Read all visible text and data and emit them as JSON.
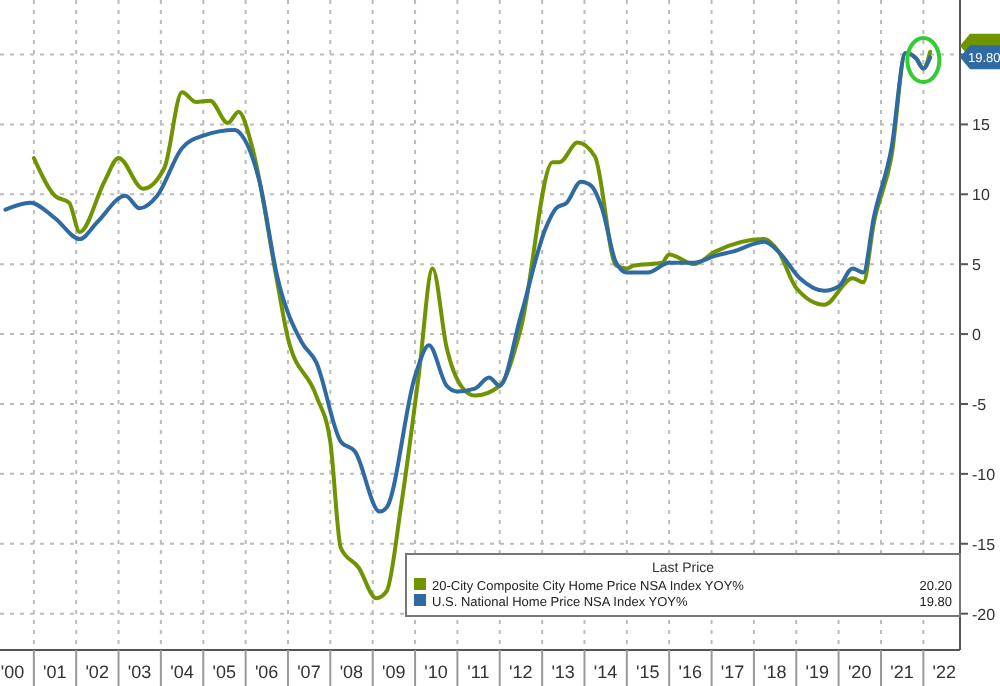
{
  "chart_data": {
    "type": "line",
    "legend_title": "Last Price",
    "legend": "bottom right",
    "grid": true,
    "marker": "none",
    "line_style": "solid",
    "xlim": [
      "2000-03-15",
      "2022-11-13"
    ],
    "ylim": [
      -22.6,
      23.9
    ],
    "xticks": [
      {
        "value": "2001",
        "label": null
      },
      {
        "value": "2002",
        "label": null
      },
      {
        "value": "2003",
        "label": null
      },
      {
        "value": "2004",
        "label": null
      },
      {
        "value": "2005",
        "label": null
      },
      {
        "value": "2006",
        "label": null
      },
      {
        "value": "2007",
        "label": null
      },
      {
        "value": "2008",
        "label": null
      },
      {
        "value": "2009",
        "label": null
      },
      {
        "value": "2010",
        "label": null
      },
      {
        "value": "2011",
        "label": null
      },
      {
        "value": "2012",
        "label": null
      },
      {
        "value": "2013",
        "label": null
      },
      {
        "value": "2014",
        "label": null
      },
      {
        "value": "2015",
        "label": null
      },
      {
        "value": "2016",
        "label": null
      },
      {
        "value": "2017",
        "label": null
      },
      {
        "value": "2018",
        "label": null
      },
      {
        "value": "2019",
        "label": null
      },
      {
        "value": "2020",
        "label": null
      },
      {
        "value": "2021",
        "label": null
      },
      {
        "value": "2022",
        "label": null
      },
      {
        "value": "2000-07",
        "label": "'00"
      },
      {
        "value": "2001-07",
        "label": "'01"
      },
      {
        "value": "2002-07",
        "label": "'02"
      },
      {
        "value": "2003-07",
        "label": "'03"
      },
      {
        "value": "2004-07",
        "label": "'04"
      },
      {
        "value": "2005-07",
        "label": "'05"
      },
      {
        "value": "2006-07",
        "label": "'06"
      },
      {
        "value": "2007-07",
        "label": "'07"
      },
      {
        "value": "2008-07",
        "label": "'08"
      },
      {
        "value": "2009-07",
        "label": "'09"
      },
      {
        "value": "2010-07",
        "label": "'10"
      },
      {
        "value": "2011-07",
        "label": "'11"
      },
      {
        "value": "2012-07",
        "label": "'12"
      },
      {
        "value": "2013-07",
        "label": "'13"
      },
      {
        "value": "2014-07",
        "label": "'14"
      },
      {
        "value": "2015-07",
        "label": "'15"
      },
      {
        "value": "2016-07",
        "label": "'16"
      },
      {
        "value": "2017-07",
        "label": "'17"
      },
      {
        "value": "2018-07",
        "label": "'18"
      },
      {
        "value": "2019-07",
        "label": "'19"
      },
      {
        "value": "2020-07",
        "label": "'20"
      },
      {
        "value": "2021-07",
        "label": "'21"
      },
      {
        "value": "2022-07",
        "label": "'22"
      }
    ],
    "yticks": [
      -20,
      -15,
      -10,
      -5,
      0,
      5,
      10,
      15,
      {
        "value": 20,
        "label": null
      }
    ],
    "series": [
      {
        "name": "20-City Composite City Home Price NSA Index YOY%",
        "color": "#6f9400",
        "x": [
          "2001-01",
          "2001-07",
          "2001-11",
          "2002-02",
          "2002-09",
          "2003-01",
          "2003-08",
          "2004-02",
          "2004-07",
          "2004-11",
          "2005-03",
          "2005-08",
          "2005-11",
          "2006-03",
          "2006-10",
          "2007-01",
          "2007-09",
          "2008-01",
          "2008-04",
          "2008-09",
          "2009-02",
          "2009-05",
          "2009-09",
          "2010-02",
          "2010-06",
          "2010-10",
          "2011-02",
          "2011-06",
          "2012-01",
          "2012-07",
          "2013-04",
          "2013-06",
          "2013-11",
          "2014-04",
          "2014-10",
          "2015-01",
          "2015-03",
          "2015-11",
          "2016-01",
          "2016-08",
          "2017-02",
          "2018-04",
          "2018-08",
          "2019-01",
          "2019-09",
          "2020-05",
          "2020-08",
          "2020-11",
          "2021-04",
          "2021-08",
          "2021-11",
          "2022-01",
          "2022-03"
        ],
        "values": [
          12.6,
          9.9,
          9.4,
          7.3,
          10.9,
          12.6,
          10.4,
          11.9,
          17.3,
          16.6,
          16.7,
          15.1,
          15.9,
          13.3,
          3.7,
          -0.3,
          -4.4,
          -7.7,
          -15.3,
          -16.7,
          -18.9,
          -18.4,
          -12.4,
          -3.0,
          4.7,
          -1.0,
          -3.7,
          -4.4,
          -3.7,
          0.4,
          12.3,
          12.3,
          13.7,
          12.7,
          4.9,
          4.7,
          4.9,
          5.1,
          5.7,
          5.0,
          5.9,
          6.8,
          5.9,
          3.3,
          2.1,
          4.0,
          3.7,
          8.0,
          12.7,
          20.1,
          19.7,
          19.0,
          20.2
        ]
      },
      {
        "name": "U.S. National Home Price NSA Index YOY%",
        "color": "#2f6aa3",
        "x": [
          "2000-05",
          "2000-12",
          "2001-07",
          "2002-02",
          "2002-07",
          "2003-03",
          "2003-07",
          "2003-12",
          "2004-07",
          "2005-01",
          "2005-10",
          "2005-12",
          "2006-05",
          "2006-10",
          "2007-05",
          "2007-09",
          "2008-04",
          "2008-08",
          "2009-03",
          "2009-05",
          "2010-01",
          "2010-05",
          "2010-10",
          "2011-01",
          "2011-06",
          "2011-10",
          "2012-01",
          "2012-07",
          "2013-02",
          "2013-05",
          "2013-08",
          "2013-12",
          "2014-03",
          "2014-06",
          "2014-10",
          "2015-01",
          "2015-07",
          "2016-01",
          "2016-08",
          "2017-02",
          "2017-07",
          "2018-04",
          "2018-08",
          "2019-02",
          "2019-09",
          "2020-01",
          "2020-05",
          "2020-08",
          "2020-11",
          "2021-04",
          "2021-08",
          "2021-11",
          "2022-01",
          "2022-03"
        ],
        "values": [
          8.9,
          9.4,
          8.3,
          6.8,
          8.0,
          9.9,
          9.0,
          9.9,
          13.3,
          14.2,
          14.6,
          14.2,
          10.9,
          4.1,
          -0.6,
          -2.0,
          -7.7,
          -8.4,
          -12.7,
          -12.4,
          -3.0,
          -0.8,
          -3.7,
          -4.1,
          -3.9,
          -3.1,
          -3.7,
          1.3,
          7.6,
          9.0,
          9.4,
          10.9,
          10.6,
          9.0,
          5.1,
          4.4,
          4.4,
          5.1,
          5.1,
          5.6,
          5.9,
          6.6,
          5.9,
          4.0,
          3.1,
          3.4,
          4.7,
          4.4,
          8.4,
          13.3,
          20.1,
          19.7,
          19.0,
          19.8
        ]
      }
    ],
    "annotations": [
      "20.20",
      "19.80",
      {
        "text": "19.80",
        "x": "2022-03",
        "y": 19.8
      }
    ]
  }
}
